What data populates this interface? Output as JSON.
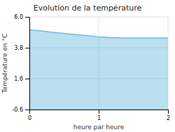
{
  "chart_data": {
    "type": "area",
    "title": "Evolution de la température",
    "xlabel": "heure par heure",
    "ylabel": "Température en °C",
    "x": [
      0.0,
      0.083,
      0.167,
      0.25,
      0.333,
      0.417,
      0.5,
      0.583,
      0.667,
      0.75,
      0.833,
      0.917,
      1.0,
      1.083,
      1.167,
      1.25,
      1.333,
      1.417,
      1.5,
      1.583,
      1.667,
      1.75,
      1.833,
      1.917,
      2.0
    ],
    "values": [
      5.08,
      5.04,
      5.0,
      4.95,
      4.9,
      4.86,
      4.82,
      4.78,
      4.74,
      4.7,
      4.66,
      4.62,
      4.58,
      4.55,
      4.52,
      4.5,
      4.5,
      4.5,
      4.5,
      4.5,
      4.5,
      4.5,
      4.5,
      4.5,
      4.5
    ],
    "color": "#66bbdd",
    "xlim": [
      0,
      2
    ],
    "xticks": [
      0,
      1,
      2
    ],
    "ylim": [
      -0.6,
      6.0
    ],
    "yticks": [
      -0.6,
      1.6,
      3.8,
      {
        "value": 6.0,
        "label": "6.0"
      }
    ],
    "grid": true
  }
}
